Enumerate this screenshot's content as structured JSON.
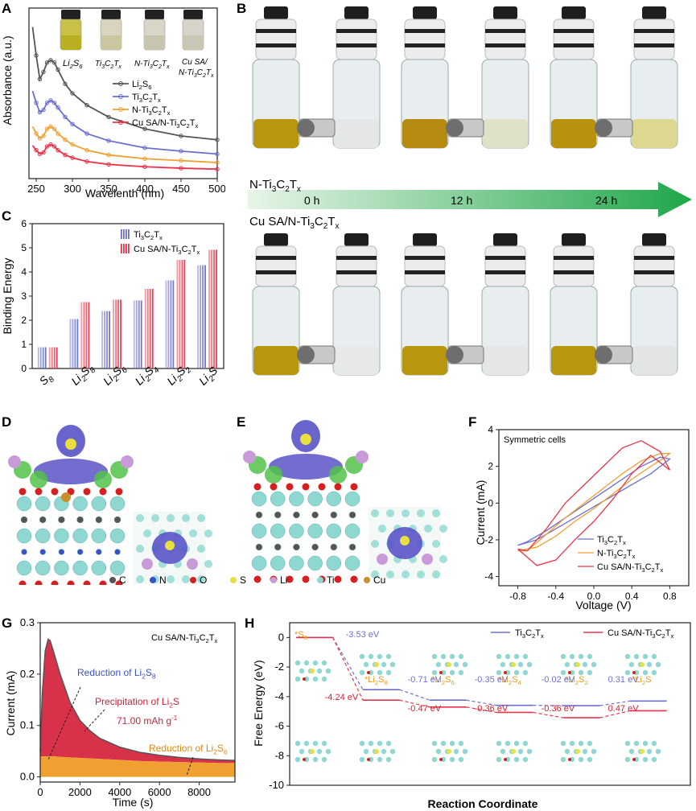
{
  "panels": {
    "A": {
      "label": "A",
      "xlabel": "Wavelenth (nm)",
      "ylabel": "Absorbance (a.u.)",
      "xticks": [
        "250",
        "300",
        "350",
        "400",
        "450",
        "500"
      ],
      "legend": [
        {
          "name": "Li2S6",
          "color": "#555555"
        },
        {
          "name": "Ti3C2Tx",
          "color": "#6b6fcf"
        },
        {
          "name": "N-Ti3C2Tx",
          "color": "#f0a030"
        },
        {
          "name": "Cu SA/N-Ti3C2Tx",
          "color": "#e8344a"
        }
      ],
      "vial_labels": [
        "Li2S6",
        "Ti3C2Tx",
        "N-Ti3C2Tx",
        "Cu SA/ N-Ti3C2Tx"
      ]
    },
    "B": {
      "label": "B",
      "row1": "N-Ti3C2Tx",
      "row2": "Cu SA/N-Ti3C2Tx",
      "times": [
        "0 h",
        "12 h",
        "24 h"
      ]
    },
    "C": {
      "label": "C",
      "ylabel": "Binding Energy",
      "legend": [
        {
          "name": "Ti3C2Tx",
          "color": "#6b6fcf"
        },
        {
          "name": "Cu SA/N-Ti3C2Tx",
          "color": "#e8344a"
        }
      ]
    },
    "D": {
      "label": "D"
    },
    "E": {
      "label": "E"
    },
    "atoms_legend": [
      {
        "name": "C",
        "color": "#555555"
      },
      {
        "name": "N",
        "color": "#3a52c8"
      },
      {
        "name": "O",
        "color": "#d42020"
      },
      {
        "name": "S",
        "color": "#e8e040"
      },
      {
        "name": "Li",
        "color": "#c89ad8"
      },
      {
        "name": "Ti",
        "color": "#8fd8d2"
      },
      {
        "name": "Cu",
        "color": "#c8902c"
      }
    ],
    "F": {
      "label": "F",
      "title": "Symmetric cells",
      "xlabel": "Voltage (V)",
      "ylabel": "Current (mA)",
      "xticks": [
        "-0.8",
        "-0.4",
        "0.0",
        "0.4",
        "0.8"
      ],
      "yticks": [
        "4",
        "2",
        "0",
        "-2",
        "-4"
      ],
      "legend": [
        {
          "name": "Ti3C2Tx",
          "color": "#6b6fcf"
        },
        {
          "name": "N-Ti3C2Tx",
          "color": "#f0a030"
        },
        {
          "name": "Cu SA/N-Ti3C2Tx",
          "color": "#e8344a"
        }
      ]
    },
    "G": {
      "label": "G",
      "title": "Cu SA/N-Ti3C2Tx",
      "xlabel": "Time (s)",
      "ylabel": "Current (mA)",
      "xticks": [
        "0",
        "2000",
        "4000",
        "6000",
        "8000"
      ],
      "yticks": [
        "0.3",
        "0.2",
        "0.1",
        "0.0"
      ],
      "ann1": "Reduction of Li2S8",
      "ann2": "Precipitation of Li2S",
      "ann3": "71.00 mAh g-1",
      "ann4": "Reduction of Li2S6"
    },
    "H": {
      "label": "H",
      "xlabel": "Reaction Coordinate",
      "ylabel": "Free Energy (eV)",
      "yticks": [
        "0",
        "-2",
        "-4",
        "-6",
        "-8",
        "-10"
      ],
      "species": [
        "*S8",
        "*Li2S8",
        "*Li2S6",
        "*Li2S4",
        "*Li2S2",
        "*Li2S"
      ],
      "top_energies": [
        "-3.53 eV",
        "-0.71 eV",
        "-0.35 eV",
        "-0.02 eV",
        "0.31 eV"
      ],
      "bottom_energies": [
        "-4.24 eV",
        "-0.47 eV",
        "-0.36 eV",
        "-0.36 eV",
        "0.47 eV"
      ],
      "legend": [
        {
          "name": "Ti3C2Tx",
          "color": "#6b6fcf"
        },
        {
          "name": "Cu SA/N-Ti3C2Tx",
          "color": "#e8344a"
        }
      ]
    }
  },
  "chart_data": [
    {
      "panel": "A",
      "type": "line",
      "xlabel": "Wavelenth (nm)",
      "ylabel": "Absorbance (a.u.)",
      "xlim": [
        240,
        500
      ],
      "x": [
        245,
        250,
        255,
        260,
        265,
        270,
        275,
        280,
        290,
        300,
        320,
        350,
        400,
        450,
        500
      ],
      "series": [
        {
          "name": "Li2S6",
          "values": [
            3.2,
            2.6,
            2.1,
            2.25,
            2.45,
            2.5,
            2.45,
            2.3,
            2.0,
            1.8,
            1.55,
            1.3,
            1.05,
            0.9,
            0.82
          ]
        },
        {
          "name": "Ti3C2Tx",
          "values": [
            1.85,
            1.6,
            1.4,
            1.45,
            1.6,
            1.65,
            1.6,
            1.5,
            1.3,
            1.15,
            0.95,
            0.8,
            0.65,
            0.58,
            0.52
          ]
        },
        {
          "name": "N-Ti3C2Tx",
          "values": [
            1.1,
            0.95,
            0.85,
            0.9,
            1.05,
            1.1,
            1.05,
            0.95,
            0.82,
            0.72,
            0.6,
            0.5,
            0.42,
            0.38,
            0.34
          ]
        },
        {
          "name": "Cu SA/N-Ti3C2Tx",
          "values": [
            0.7,
            0.6,
            0.52,
            0.55,
            0.68,
            0.72,
            0.68,
            0.6,
            0.5,
            0.44,
            0.36,
            0.3,
            0.25,
            0.22,
            0.2
          ]
        }
      ]
    },
    {
      "panel": "C",
      "type": "bar",
      "ylabel": "Binding Energy",
      "ylim": [
        0,
        6
      ],
      "yticks": [
        0,
        1,
        2,
        3,
        4,
        5,
        6
      ],
      "categories": [
        "S8",
        "Li2S8",
        "Li2S6",
        "Li2S4",
        "Li2S2",
        "Li2S"
      ],
      "series": [
        {
          "name": "Ti3C2Tx",
          "values": [
            0.88,
            2.05,
            2.38,
            2.82,
            3.65,
            4.28
          ]
        },
        {
          "name": "Cu SA/N-Ti3C2Tx",
          "values": [
            0.88,
            2.75,
            2.85,
            3.3,
            4.5,
            4.92
          ]
        }
      ]
    },
    {
      "panel": "F",
      "type": "line",
      "xlabel": "Voltage (V)",
      "ylabel": "Current (mA)",
      "xlim": [
        -1.0,
        1.0
      ],
      "ylim": [
        -4.5,
        4.0
      ],
      "series": [
        {
          "name": "Ti3C2Tx",
          "x": [
            -0.8,
            -0.6,
            -0.4,
            -0.2,
            0.0,
            0.2,
            0.4,
            0.6,
            0.75,
            0.8,
            0.7,
            0.5,
            0.3,
            0.1,
            -0.1,
            -0.3,
            -0.5,
            -0.7,
            -0.8
          ],
          "y": [
            -2.3,
            -2.0,
            -1.4,
            -0.8,
            -0.2,
            0.4,
            1.0,
            1.6,
            2.2,
            2.4,
            2.5,
            2.0,
            1.3,
            0.6,
            -0.1,
            -0.8,
            -1.5,
            -2.1,
            -2.3
          ]
        },
        {
          "name": "N-Ti3C2Tx",
          "x": [
            -0.8,
            -0.6,
            -0.4,
            -0.2,
            0.0,
            0.2,
            0.4,
            0.6,
            0.75,
            0.8,
            0.7,
            0.5,
            0.3,
            0.1,
            -0.1,
            -0.3,
            -0.5,
            -0.7,
            -0.8
          ],
          "y": [
            -2.6,
            -2.4,
            -1.8,
            -1.0,
            -0.3,
            0.5,
            1.3,
            2.0,
            2.5,
            2.7,
            2.7,
            2.3,
            1.6,
            0.8,
            0.0,
            -0.8,
            -1.7,
            -2.6,
            -2.6
          ]
        },
        {
          "name": "Cu SA/N-Ti3C2Tx",
          "x": [
            -0.8,
            -0.6,
            -0.4,
            -0.2,
            0.0,
            0.2,
            0.4,
            0.6,
            0.75,
            0.8,
            0.7,
            0.5,
            0.3,
            0.1,
            -0.1,
            -0.3,
            -0.5,
            -0.7,
            -0.8
          ],
          "y": [
            -2.5,
            -3.4,
            -3.1,
            -2.0,
            -1.0,
            0.2,
            1.6,
            2.6,
            2.0,
            1.8,
            2.8,
            3.4,
            3.0,
            2.0,
            1.0,
            0.0,
            -1.4,
            -2.6,
            -2.5
          ]
        }
      ]
    },
    {
      "panel": "G",
      "type": "area",
      "xlabel": "Time (s)",
      "ylabel": "Current (mA)",
      "xlim": [
        0,
        9800
      ],
      "ylim": [
        -0.01,
        0.3
      ],
      "x": [
        0,
        100,
        250,
        400,
        500,
        700,
        1000,
        1500,
        2000,
        2500,
        3000,
        4000,
        5000,
        6000,
        7000,
        8000,
        9000,
        9800
      ],
      "series": [
        {
          "name": "Current",
          "values": [
            0.05,
            0.16,
            0.245,
            0.268,
            0.265,
            0.24,
            0.2,
            0.145,
            0.11,
            0.09,
            0.075,
            0.058,
            0.048,
            0.042,
            0.038,
            0.035,
            0.033,
            0.032
          ]
        },
        {
          "name": "Baseline",
          "values": [
            0.04,
            0.04,
            0.04,
            0.04,
            0.04,
            0.04,
            0.039,
            0.038,
            0.037,
            0.036,
            0.035,
            0.033,
            0.031,
            0.03,
            0.029,
            0.028,
            0.027,
            0.027
          ]
        }
      ]
    },
    {
      "panel": "H",
      "type": "line",
      "xlabel": "Reaction Coordinate",
      "ylabel": "Free Energy (eV)",
      "ylim": [
        -10,
        1
      ],
      "categories": [
        "*S8",
        "*Li2S8",
        "*Li2S6",
        "*Li2S4",
        "*Li2S2",
        "*Li2S"
      ],
      "series": [
        {
          "name": "Ti3C2Tx",
          "values": [
            0.0,
            -3.53,
            -4.24,
            -4.59,
            -4.61,
            -4.3
          ]
        },
        {
          "name": "Cu SA/N-Ti3C2Tx",
          "values": [
            0.0,
            -4.24,
            -4.71,
            -5.07,
            -5.43,
            -4.96
          ]
        }
      ]
    }
  ]
}
